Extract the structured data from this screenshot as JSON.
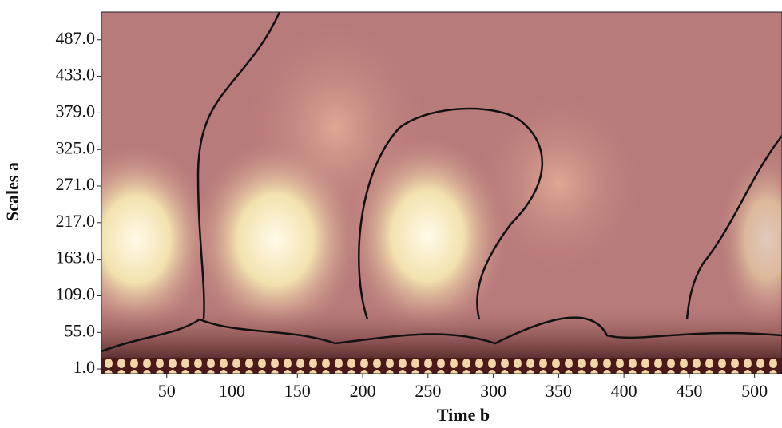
{
  "chart_data": {
    "type": "heatmap",
    "x_label": "Time b",
    "y_label": "Scales a",
    "xlim": [
      0,
      521
    ],
    "xticks": [
      50,
      100,
      150,
      200,
      250,
      300,
      350,
      400,
      450,
      500
    ],
    "ylim": [
      -6,
      528
    ],
    "yticks": [
      {
        "value": 1,
        "label": "1.0"
      },
      {
        "value": 55,
        "label": "55.0"
      },
      {
        "value": 109,
        "label": "109.0"
      },
      {
        "value": 163,
        "label": "163.0"
      },
      {
        "value": 217,
        "label": "217.0"
      },
      {
        "value": 271,
        "label": "271.0"
      },
      {
        "value": 325,
        "label": "325.0"
      },
      {
        "value": 379,
        "label": "379.0"
      },
      {
        "value": 433,
        "label": "433.0"
      },
      {
        "value": 487,
        "label": "487.0"
      }
    ]
  }
}
